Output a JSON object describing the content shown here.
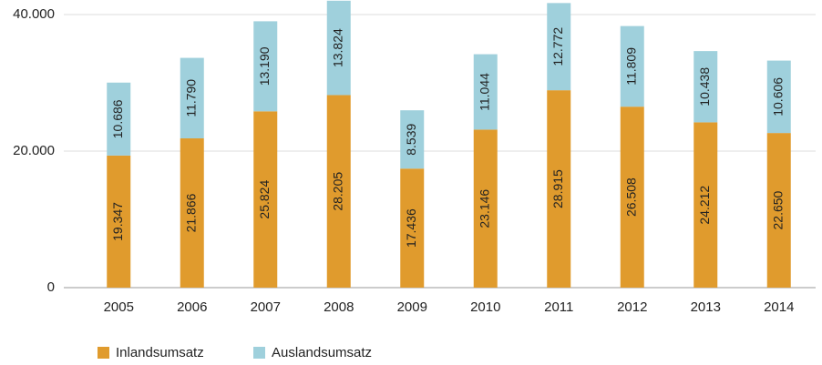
{
  "chart_data": {
    "type": "stacked-bar",
    "categories": [
      "2005",
      "2006",
      "2007",
      "2008",
      "2009",
      "2010",
      "2011",
      "2012",
      "2013",
      "2014"
    ],
    "series": [
      {
        "name": "Inlandsumsatz",
        "color": "#e09b2d",
        "values": [
          19347,
          21866,
          25824,
          28205,
          17436,
          23146,
          28915,
          26508,
          24212,
          22650
        ],
        "value_labels": [
          "19.347",
          "21.866",
          "25.824",
          "28.205",
          "17.436",
          "23.146",
          "28.915",
          "26.508",
          "24.212",
          "22.650"
        ]
      },
      {
        "name": "Auslandsumsatz",
        "color": "#9fd0dc",
        "values": [
          10686,
          11790,
          13190,
          13824,
          8539,
          11044,
          12772,
          11809,
          10438,
          10606
        ],
        "value_labels": [
          "10.686",
          "11.790",
          "13.190",
          "13.824",
          "8.539",
          "11.044",
          "12.772",
          "11.809",
          "10.438",
          "10.606"
        ]
      }
    ],
    "ylim": [
      0,
      42000
    ],
    "yticks": [
      0,
      {
        "value": 20000,
        "label": "20.000"
      },
      {
        "value": 40000,
        "label": "40.000"
      }
    ],
    "grid": true
  }
}
